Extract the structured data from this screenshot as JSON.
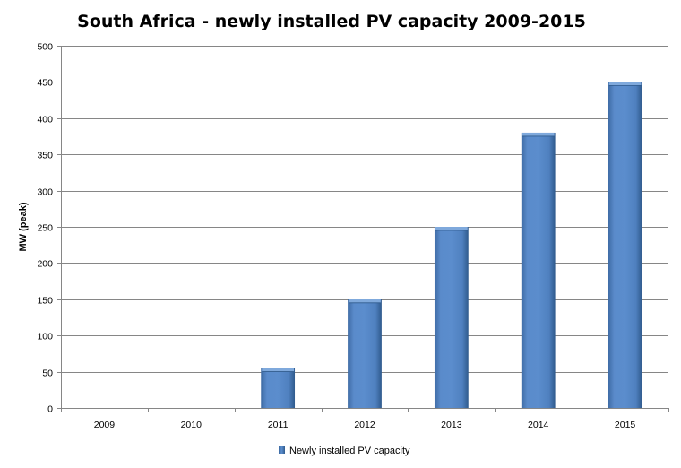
{
  "chart_data": {
    "type": "bar",
    "title": "South Africa - newly installed PV capacity 2009-2015",
    "xlabel": "",
    "ylabel": "MW (peak)",
    "categories": [
      "2009",
      "2010",
      "2011",
      "2012",
      "2013",
      "2014",
      "2015"
    ],
    "series": [
      {
        "name": "Newly installed PV capacity",
        "values": [
          0,
          0,
          55,
          150,
          250,
          380,
          450
        ]
      }
    ],
    "ylim": [
      0,
      500
    ],
    "yticks": [
      0,
      50,
      100,
      150,
      200,
      250,
      300,
      350,
      400,
      450,
      500
    ],
    "grid": true,
    "legend_position": "bottom",
    "colors": {
      "bar": "#4f81bd",
      "bar_highlight": "#7fa9dc",
      "bar_shadow": "#2f5a8c",
      "gridline": "#868686",
      "axis": "#868686"
    }
  }
}
